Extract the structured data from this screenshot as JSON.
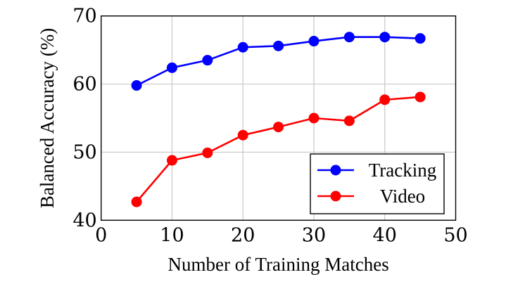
{
  "chart_data": {
    "type": "line",
    "title": "",
    "xlabel": "Number of Training Matches",
    "ylabel": "Balanced Accuracy (%)",
    "xlim": [
      0,
      50
    ],
    "ylim": [
      40,
      70
    ],
    "xticks": [
      0,
      10,
      20,
      30,
      40,
      50
    ],
    "yticks": [
      40,
      50,
      60,
      70
    ],
    "grid": true,
    "legend_position": "lower right",
    "x": [
      5,
      10,
      15,
      20,
      25,
      30,
      35,
      40,
      45
    ],
    "series": [
      {
        "name": "Tracking",
        "color": "#0000ff",
        "marker": "circle",
        "values": [
          59.8,
          62.4,
          63.5,
          65.4,
          65.6,
          66.3,
          66.9,
          66.9,
          66.7
        ]
      },
      {
        "name": "Video",
        "color": "#ff0000",
        "marker": "circle",
        "values": [
          42.7,
          48.8,
          49.9,
          52.5,
          53.7,
          55.0,
          54.6,
          57.7,
          58.1
        ]
      }
    ]
  },
  "colors": {
    "grid": "#c8c8c8",
    "axis": "#000000",
    "background": "#ffffff"
  }
}
